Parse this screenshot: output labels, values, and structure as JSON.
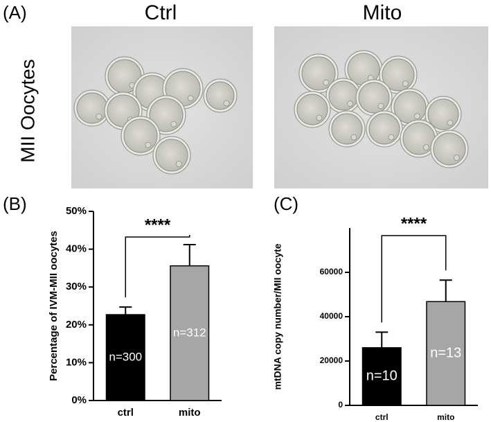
{
  "panel_a": {
    "label": "(A)",
    "titles": [
      "Ctrl",
      "Mito"
    ],
    "row_label": "MII Oocytes"
  },
  "chart_data": [
    {
      "type": "bar",
      "panel_label": "(B)",
      "y_label": "Percentage of IVM-MII oocytes",
      "categories": [
        "ctrl",
        "mito"
      ],
      "values": [
        22.7,
        35.6
      ],
      "errors": [
        2.0,
        5.6
      ],
      "colors": [
        "#000000",
        "#a6a6a6"
      ],
      "sample_labels": [
        "n=300",
        "n=312"
      ],
      "significance": "****",
      "ylim": [
        0,
        50
      ],
      "yticks": [
        {
          "value": 0,
          "label": "0%"
        },
        {
          "value": 10,
          "label": "10%"
        },
        {
          "value": 20,
          "label": "20%"
        },
        {
          "value": 30,
          "label": "30%"
        },
        {
          "value": 40,
          "label": "40%"
        },
        {
          "value": 50,
          "label": "50%"
        }
      ]
    },
    {
      "type": "bar",
      "panel_label": "(C)",
      "y_label": "mtDNA copy number/MII oocyte",
      "categories": [
        "ctrl",
        "mito"
      ],
      "values": [
        26000,
        46800
      ],
      "errors": [
        7000,
        9700
      ],
      "colors": [
        "#000000",
        "#a6a6a6"
      ],
      "sample_labels": [
        "n=10",
        "n=13"
      ],
      "significance": "****",
      "ylim": [
        0,
        80000
      ],
      "yticks": [
        0,
        20000,
        40000,
        60000
      ]
    }
  ]
}
